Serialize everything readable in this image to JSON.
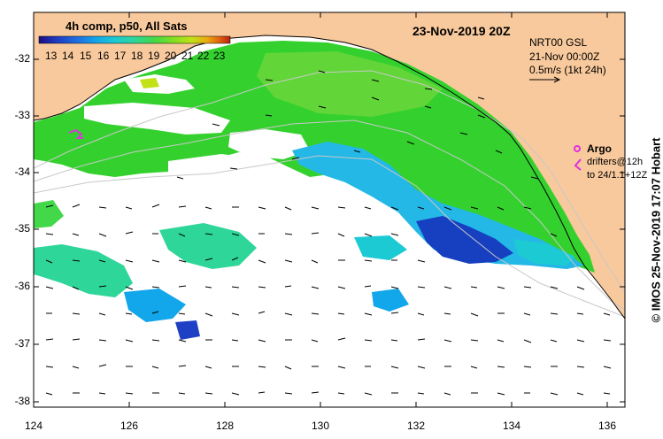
{
  "header": {
    "date_title": "23-Nov-2019 20Z",
    "product_label": "4h comp, p50, All Sats"
  },
  "colorbar": {
    "ticks": [
      "13",
      "14",
      "15",
      "16",
      "17",
      "18",
      "19",
      "20",
      "21",
      "22",
      "23"
    ],
    "colors": [
      "#1a0e86",
      "#1f3fc4",
      "#1d6fe0",
      "#12a6ea",
      "#1ccad3",
      "#2ed69a",
      "#42d84a",
      "#7fdf22",
      "#c2e116",
      "#eba812",
      "#de5a10",
      "#b52210"
    ]
  },
  "current_info": {
    "model": "NRT00 GSL",
    "time": "21-Nov 00:00Z",
    "scale": "0.5m/s (1kt 24h)"
  },
  "legend": {
    "argo_label": "Argo",
    "drifter_line1": "drifters@12h",
    "drifter_line2": "to 24/1.1+12Z",
    "argo_color": "#e030e0"
  },
  "axes": {
    "y_ticks": [
      "-32",
      "-33",
      "-34",
      "-35",
      "-36",
      "-37",
      "-38"
    ],
    "x_ticks": [
      "124",
      "126",
      "128",
      "130",
      "132",
      "134",
      "136"
    ]
  },
  "credit": "© IMOS 25-Nov-2019 17:07 Hobart",
  "colors": {
    "land": "#f8c99c",
    "no_data": "#ffffff",
    "coastline": "#000000",
    "bathymetry": "#c8c8c8"
  }
}
